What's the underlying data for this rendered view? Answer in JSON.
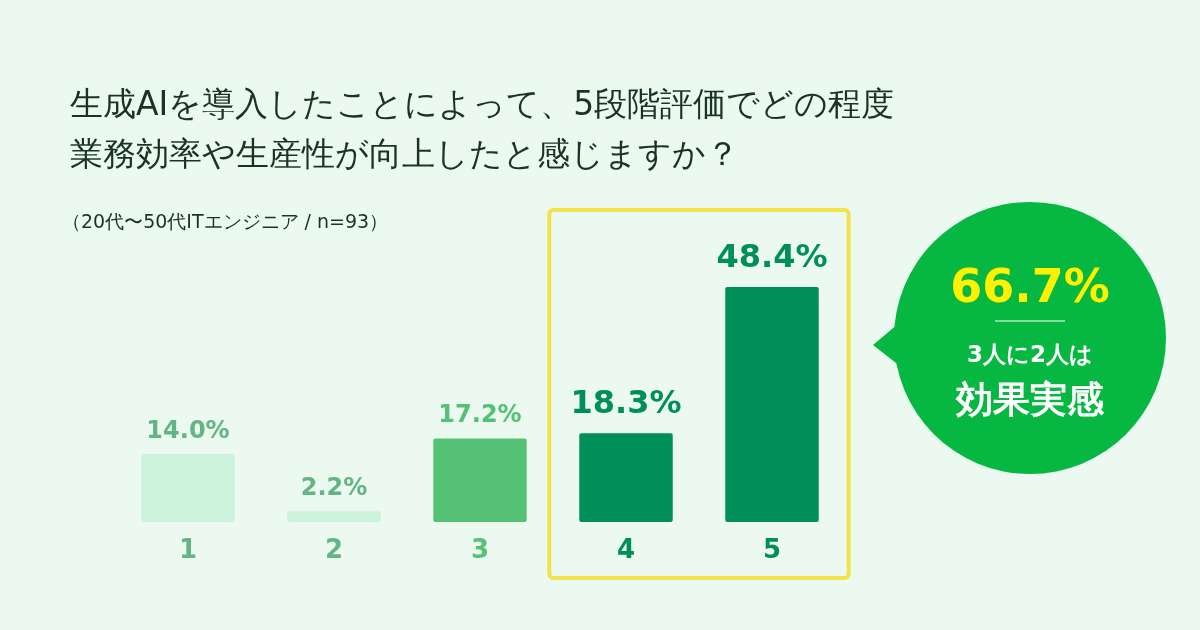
{
  "chart_data": {
    "type": "bar",
    "title": "生成AIを導入したことによって、5段階評価でどの程度業務効率や生産性が向上したと感じますか？",
    "subtitle": "（20代〜50代ITエンジニア / n=93）",
    "categories": [
      "1",
      "2",
      "3",
      "4",
      "5"
    ],
    "values": [
      14.0,
      2.2,
      17.2,
      18.3,
      48.4
    ],
    "colors": [
      "#ccf2dc",
      "#ccf2dc",
      "#55c174",
      "#008f59",
      "#008f59"
    ],
    "value_labels": [
      "14.0%",
      "2.2%",
      "17.2%",
      "18.3%",
      "48.4%"
    ],
    "annotations": [
      "66.7%",
      "3人に2人は",
      "効果実感"
    ]
  }
}
